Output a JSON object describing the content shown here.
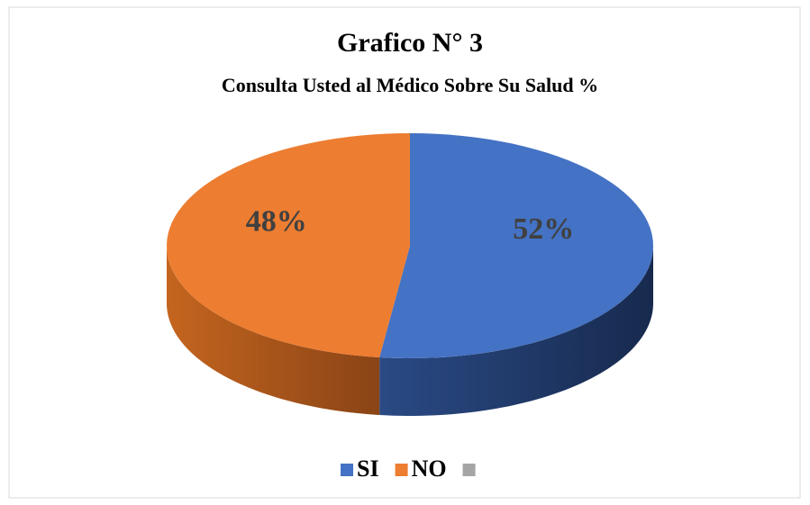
{
  "chart_data": {
    "type": "pie3d",
    "title": "Grafico N° 3",
    "subtitle": "Consulta Usted al Médico Sobre Su Salud %",
    "categories": [
      "SI",
      "NO",
      null
    ],
    "values": [
      52,
      48,
      0
    ],
    "value_labels": [
      "52%",
      "48%",
      null
    ],
    "colors": [
      "#4472c4",
      "#ed7d31",
      "#a5a5a5"
    ],
    "legend": "bottom"
  }
}
